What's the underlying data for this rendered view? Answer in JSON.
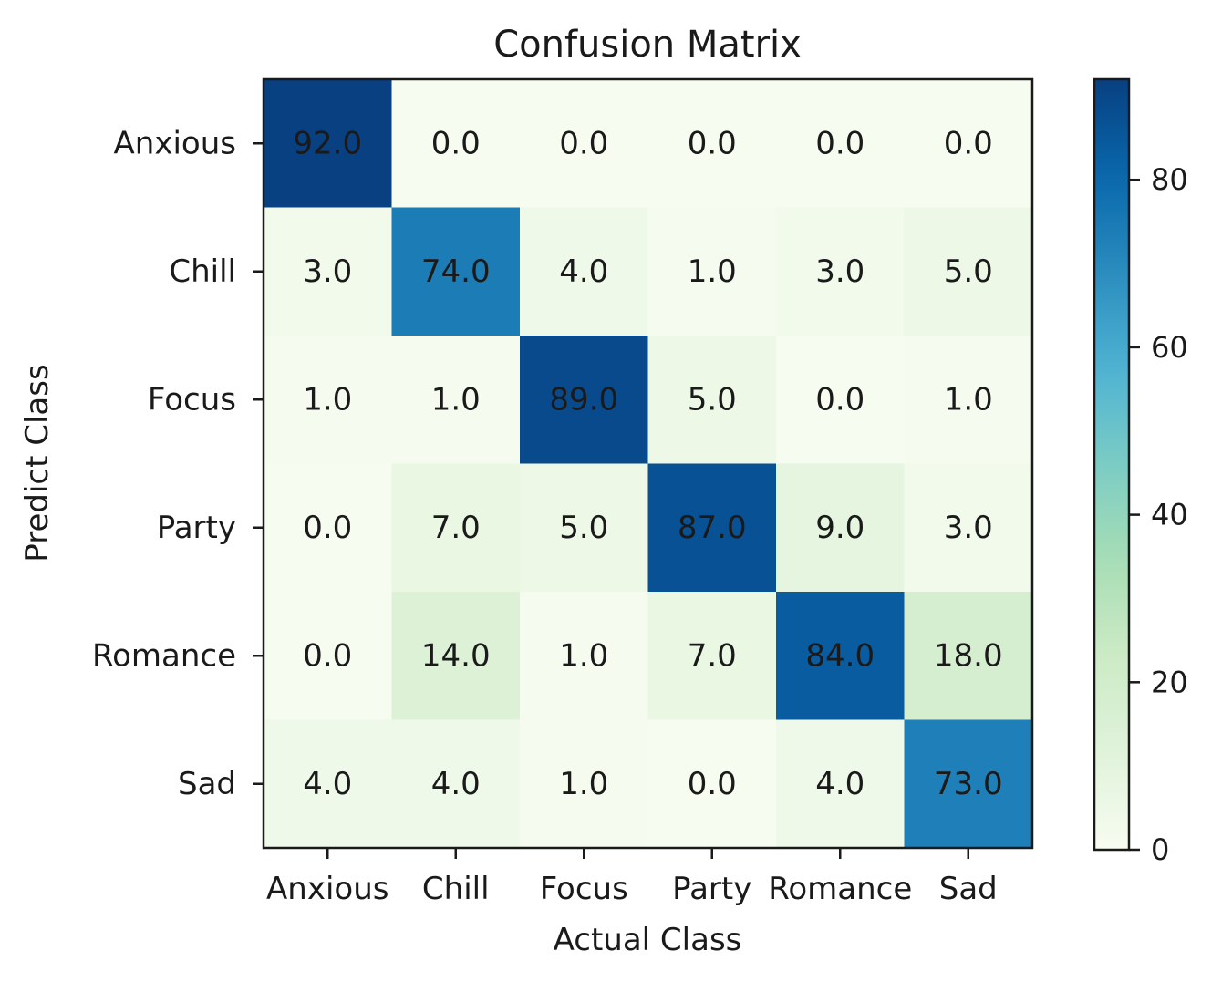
{
  "chart_data": {
    "type": "heatmap",
    "title": "Confusion Matrix",
    "xlabel": "Actual Class",
    "ylabel": "Predict Class",
    "x_categories": [
      "Anxious",
      "Chill",
      "Focus",
      "Party",
      "Romance",
      "Sad"
    ],
    "y_categories": [
      "Anxious",
      "Chill",
      "Focus",
      "Party",
      "Romance",
      "Sad"
    ],
    "values": [
      [
        92,
        0,
        0,
        0,
        0,
        0
      ],
      [
        3,
        74,
        4,
        1,
        3,
        5
      ],
      [
        1,
        1,
        89,
        5,
        0,
        1
      ],
      [
        0,
        7,
        5,
        87,
        9,
        3
      ],
      [
        0,
        14,
        1,
        7,
        84,
        18
      ],
      [
        4,
        4,
        1,
        0,
        4,
        73
      ]
    ],
    "cell_labels": [
      [
        "92.0",
        "0.0",
        "0.0",
        "0.0",
        "0.0",
        "0.0"
      ],
      [
        "3.0",
        "74.0",
        "4.0",
        "1.0",
        "3.0",
        "5.0"
      ],
      [
        "1.0",
        "1.0",
        "89.0",
        "5.0",
        "0.0",
        "1.0"
      ],
      [
        "0.0",
        "7.0",
        "5.0",
        "87.0",
        "9.0",
        "3.0"
      ],
      [
        "0.0",
        "14.0",
        "1.0",
        "7.0",
        "84.0",
        "18.0"
      ],
      [
        "4.0",
        "4.0",
        "1.0",
        "0.0",
        "4.0",
        "73.0"
      ]
    ],
    "colormap": "GnBu",
    "color_range": [
      0,
      92
    ],
    "colorbar": {
      "ticks": [
        0,
        20,
        40,
        60,
        80
      ],
      "tick_labels": [
        "0",
        "20",
        "40",
        "60",
        "80"
      ]
    },
    "grid": false,
    "legend": "colorbar-right"
  }
}
